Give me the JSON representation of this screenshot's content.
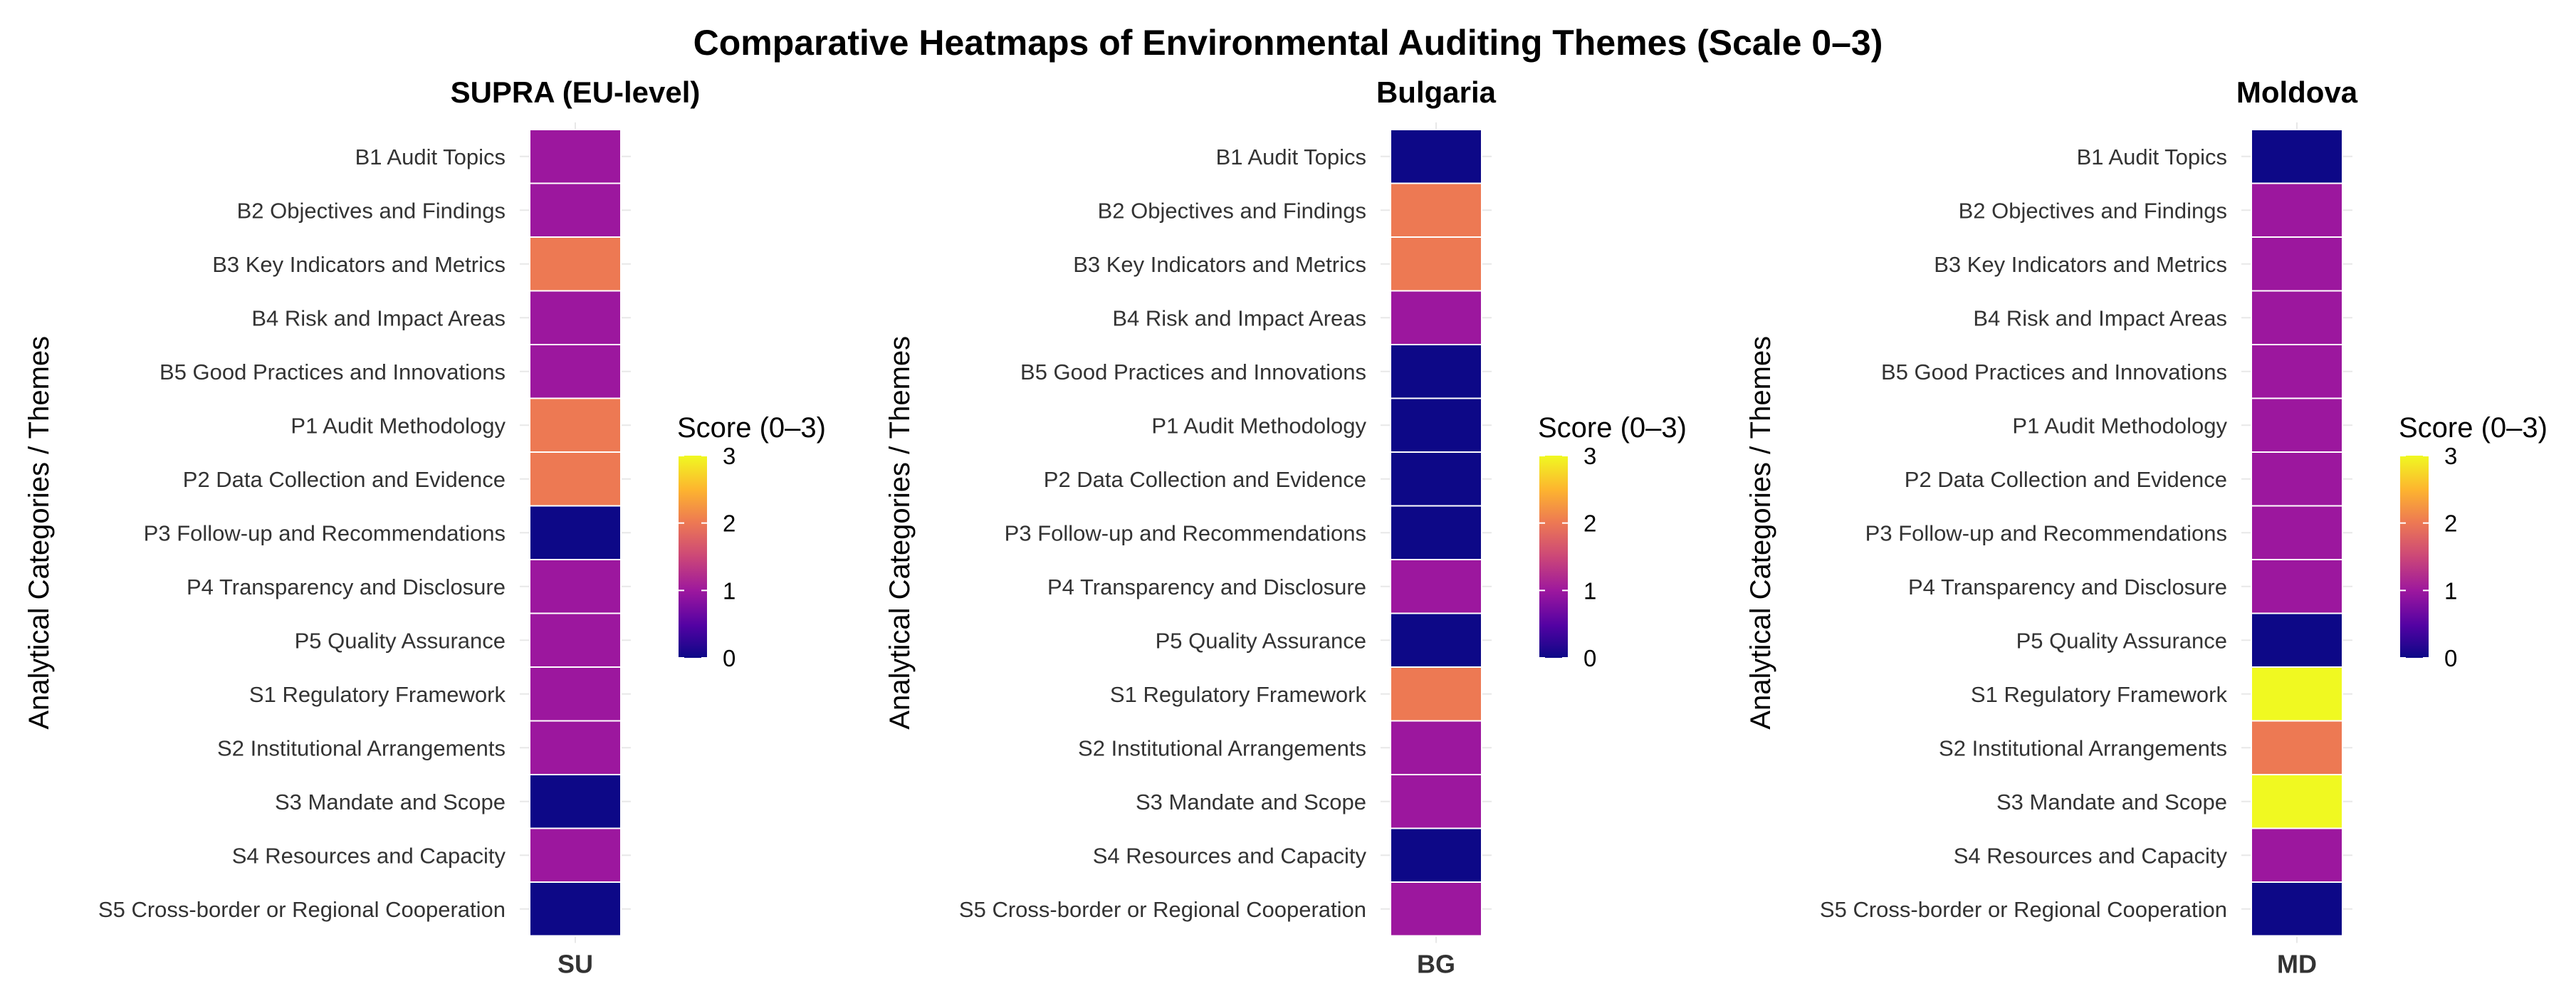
{
  "chart_data": {
    "type": "heatmap",
    "title": "Comparative Heatmaps of Environmental Auditing Themes (Scale 0–3)",
    "ylabel": "Analytical Categories / Themes",
    "legend_title": "Score (0–3)",
    "legend_ticks": [
      "0",
      "1",
      "2",
      "3"
    ],
    "scale": [
      0,
      3
    ],
    "colors": {
      "0": "#0d0887",
      "1": "#9c179e",
      "2": "#ed7953",
      "3": "#f0f921"
    },
    "categories": [
      "B1 Audit Topics",
      "B2 Objectives and Findings",
      "B3 Key Indicators and Metrics",
      "B4 Risk and Impact Areas",
      "B5 Good Practices and Innovations",
      "P1 Audit Methodology",
      "P2 Data Collection and Evidence",
      "P3 Follow-up and Recommendations",
      "P4 Transparency and Disclosure",
      "P5 Quality Assurance",
      "S1 Regulatory Framework",
      "S2 Institutional Arrangements",
      "S3 Mandate and Scope",
      "S4 Resources and Capacity",
      "S5 Cross-border or Regional Cooperation"
    ],
    "panels": [
      {
        "title": "SUPRA (EU-level)",
        "xlabel": "SU",
        "values": [
          1,
          1,
          2,
          1,
          1,
          2,
          2,
          0,
          1,
          1,
          1,
          1,
          0,
          1,
          0
        ]
      },
      {
        "title": "Bulgaria",
        "xlabel": "BG",
        "values": [
          0,
          2,
          2,
          1,
          0,
          0,
          0,
          0,
          1,
          0,
          2,
          1,
          1,
          0,
          1
        ]
      },
      {
        "title": "Moldova",
        "xlabel": "MD",
        "values": [
          0,
          1,
          1,
          1,
          1,
          1,
          1,
          1,
          1,
          0,
          3,
          2,
          3,
          1,
          0
        ]
      }
    ]
  }
}
